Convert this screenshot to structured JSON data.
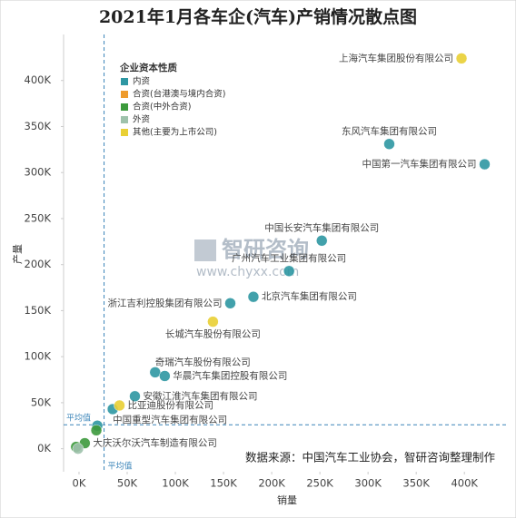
{
  "chart_data": {
    "type": "scatter",
    "title": "2021年1月各车企(汽车)产销情况散点图",
    "x_label": "销量",
    "y_label": "产量",
    "legend_title": "企业资本性质",
    "xlim": [
      -16000,
      446000
    ],
    "ylim": [
      -25000,
      450000
    ],
    "xticks": [
      {
        "value": 0,
        "label": "0K"
      },
      {
        "value": 50000,
        "label": "50K"
      },
      {
        "value": 100000,
        "label": "100K"
      },
      {
        "value": 150000,
        "label": "150K"
      },
      {
        "value": 200000,
        "label": "200K"
      },
      {
        "value": 250000,
        "label": "250K"
      },
      {
        "value": 300000,
        "label": "300K"
      },
      {
        "value": 350000,
        "label": "350K"
      },
      {
        "value": 400000,
        "label": "400K"
      }
    ],
    "yticks": [
      {
        "value": 0,
        "label": "0K"
      },
      {
        "value": 50000,
        "label": "50K"
      },
      {
        "value": 100000,
        "label": "100K"
      },
      {
        "value": 150000,
        "label": "150K"
      },
      {
        "value": 200000,
        "label": "200K"
      },
      {
        "value": 250000,
        "label": "250K"
      },
      {
        "value": 300000,
        "label": "300K"
      },
      {
        "value": 350000,
        "label": "350K"
      },
      {
        "value": 400000,
        "label": "400K"
      }
    ],
    "average": {
      "x": 26000,
      "y": 26000,
      "label": "平均值"
    },
    "series": [
      {
        "name": "内资",
        "color": "#2e97a3",
        "x": [
          322000,
          421000,
          252000,
          218000,
          181000,
          157000,
          79000,
          89000,
          58000,
          35000,
          19000
        ],
        "values": [
          331000,
          309000,
          226000,
          193000,
          165000,
          158000,
          83000,
          79000,
          57000,
          43000,
          25000
        ],
        "point_labels": [
          "东风汽车集团有限公司",
          "中国第一汽车集团有限公司",
          "中国长安汽车集团有限公司",
          "广州汽车工业集团有限公司",
          "北京汽车集团有限公司",
          "浙江吉利控股集团有限公司",
          "奇瑞汽车股份有限公司",
          "华晨汽车集团控股有限公司",
          "安徽江淮汽车集团有限公司",
          "中国重型汽车集团有限公司",
          null
        ]
      },
      {
        "name": "合资(台港澳与境内合资)",
        "color": "#ee9b2c",
        "x": [],
        "values": [],
        "point_labels": []
      },
      {
        "name": "合资(中外合资)",
        "color": "#3c9a3c",
        "x": [
          18000,
          6000,
          -3000
        ],
        "values": [
          20000,
          6000,
          2000
        ],
        "point_labels": [
          null,
          "大庆沃尔沃汽车制造有限公司",
          null
        ]
      },
      {
        "name": "外资",
        "color": "#9ec2ab",
        "x": [
          -1000
        ],
        "values": [
          0
        ],
        "point_labels": [
          null
        ]
      },
      {
        "name": "其他(主要为上市公司)",
        "color": "#e9d035",
        "x": [
          397000,
          139000,
          42000
        ],
        "values": [
          424000,
          138000,
          47000
        ],
        "point_labels": [
          "上海汽车集团股份有限公司",
          "长城汽车股份有限公司",
          "比亚迪股份有限公司"
        ]
      }
    ]
  },
  "watermark": {
    "brand": "智研咨询",
    "url": "www.chyxx.com"
  },
  "source": "数据来源：中国汽车工业协会，智研咨询整理制作"
}
